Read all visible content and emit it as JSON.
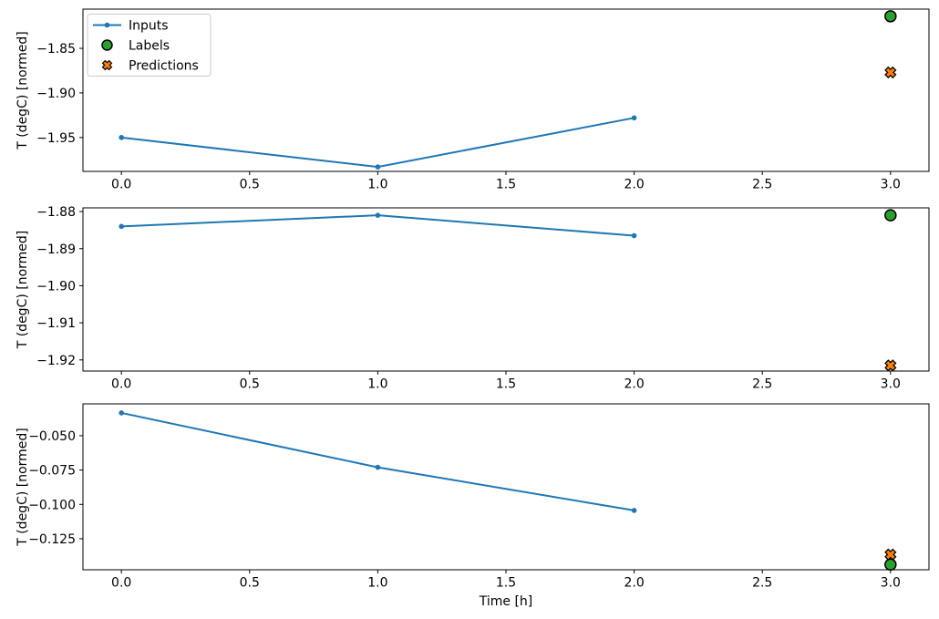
{
  "figure": {
    "background": "#ffffff",
    "axis_color": "#000000",
    "legend": {
      "position": "upper left",
      "border_color": "#cccccc",
      "items": [
        {
          "label": "Inputs",
          "marker": "line-dot",
          "color": "#1f77b4",
          "edge_color": "#1f77b4"
        },
        {
          "label": "Labels",
          "marker": "circle",
          "color": "#2ca02c",
          "edge_color": "#000000"
        },
        {
          "label": "Predictions",
          "marker": "x-filled",
          "color": "#ff7f0e",
          "edge_color": "#000000"
        }
      ]
    }
  },
  "chart_data": [
    {
      "type": "line",
      "title": "",
      "xlabel": "",
      "ylabel": "T (degC) [normed]",
      "grid": false,
      "xlim": [
        -0.15,
        3.15
      ],
      "ylim": [
        -1.988,
        -1.806
      ],
      "x_ticks": [
        0.0,
        0.5,
        1.0,
        1.5,
        2.0,
        2.5,
        3.0
      ],
      "x_tick_labels": [
        "0.0",
        "0.5",
        "1.0",
        "1.5",
        "2.0",
        "2.5",
        "3.0"
      ],
      "y_ticks": [
        -1.85,
        -1.9,
        -1.95
      ],
      "y_tick_labels": [
        "−1.85",
        "−1.90",
        "−1.95"
      ],
      "series": [
        {
          "name": "Inputs",
          "type": "line",
          "marker": "dot",
          "color": "#1f77b4",
          "edge_color": "#1f77b4",
          "x": [
            0,
            1,
            2
          ],
          "y": [
            -1.95,
            -1.983,
            -1.928
          ]
        },
        {
          "name": "Labels",
          "type": "scatter",
          "marker": "circle",
          "color": "#2ca02c",
          "edge_color": "#000000",
          "x": [
            3
          ],
          "y": [
            -1.814
          ]
        },
        {
          "name": "Predictions",
          "type": "scatter",
          "marker": "x-filled",
          "color": "#ff7f0e",
          "edge_color": "#000000",
          "x": [
            3
          ],
          "y": [
            -1.877
          ]
        }
      ]
    },
    {
      "type": "line",
      "title": "",
      "xlabel": "",
      "ylabel": "T (degC) [normed]",
      "grid": false,
      "xlim": [
        -0.15,
        3.15
      ],
      "ylim": [
        -1.923,
        -1.879
      ],
      "x_ticks": [
        0.0,
        0.5,
        1.0,
        1.5,
        2.0,
        2.5,
        3.0
      ],
      "x_tick_labels": [
        "0.0",
        "0.5",
        "1.0",
        "1.5",
        "2.0",
        "2.5",
        "3.0"
      ],
      "y_ticks": [
        -1.88,
        -1.89,
        -1.9,
        -1.91,
        -1.92
      ],
      "y_tick_labels": [
        "−1.88",
        "−1.89",
        "−1.90",
        "−1.91",
        "−1.92"
      ],
      "series": [
        {
          "name": "Inputs",
          "type": "line",
          "marker": "dot",
          "color": "#1f77b4",
          "edge_color": "#1f77b4",
          "x": [
            0,
            1,
            2
          ],
          "y": [
            -1.884,
            -1.881,
            -1.8865
          ]
        },
        {
          "name": "Labels",
          "type": "scatter",
          "marker": "circle",
          "color": "#2ca02c",
          "edge_color": "#000000",
          "x": [
            3
          ],
          "y": [
            -1.881
          ]
        },
        {
          "name": "Predictions",
          "type": "scatter",
          "marker": "x-filled",
          "color": "#ff7f0e",
          "edge_color": "#000000",
          "x": [
            3
          ],
          "y": [
            -1.9215
          ]
        }
      ]
    },
    {
      "type": "line",
      "title": "",
      "xlabel": "Time [h]",
      "ylabel": "T (degC) [normed]",
      "grid": false,
      "xlim": [
        -0.15,
        3.15
      ],
      "ylim": [
        -0.1476,
        -0.0268
      ],
      "x_ticks": [
        0.0,
        0.5,
        1.0,
        1.5,
        2.0,
        2.5,
        3.0
      ],
      "x_tick_labels": [
        "0.0",
        "0.5",
        "1.0",
        "1.5",
        "2.0",
        "2.5",
        "3.0"
      ],
      "y_ticks": [
        -0.05,
        -0.075,
        -0.1,
        -0.125
      ],
      "y_tick_labels": [
        "−0.050",
        "−0.075",
        "−0.100",
        "−0.125"
      ],
      "series": [
        {
          "name": "Inputs",
          "type": "line",
          "marker": "dot",
          "color": "#1f77b4",
          "edge_color": "#1f77b4",
          "x": [
            0,
            1,
            2
          ],
          "y": [
            -0.0334,
            -0.073,
            -0.1044
          ]
        },
        {
          "name": "Labels",
          "type": "scatter",
          "marker": "circle",
          "color": "#2ca02c",
          "edge_color": "#000000",
          "x": [
            3
          ],
          "y": [
            -0.1438
          ]
        },
        {
          "name": "Predictions",
          "type": "scatter",
          "marker": "x-filled",
          "color": "#ff7f0e",
          "edge_color": "#000000",
          "x": [
            3
          ],
          "y": [
            -0.1365
          ]
        }
      ]
    }
  ]
}
